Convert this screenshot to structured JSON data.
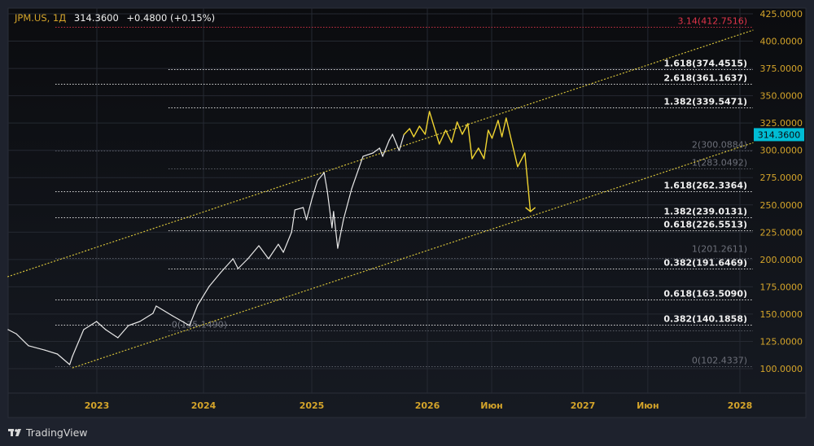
{
  "header": {
    "symbol": "JPM.US, 1Д",
    "price": "314.3600",
    "change": "+0.4800 (+0.15%)"
  },
  "branding": {
    "logo_text": "TradingView"
  },
  "colors": {
    "background": "#1e222d",
    "plot_top": "#0b0c0f",
    "plot_bottom": "#161a22",
    "grid": "#252932",
    "axis_text": "#d4a42a",
    "price_line": "#e8e8e8",
    "forecast_line": "#f0d431",
    "channel": "#d6c23a",
    "fib_white": "#f0f0f0",
    "fib_grey": "#6d707a",
    "fib_red": "#e0344a",
    "last_price_bg": "#00bcd4"
  },
  "chart_data": {
    "type": "line",
    "title": "",
    "xlabel": "",
    "ylabel": "",
    "ylim": [
      87,
      435
    ],
    "grid": true,
    "y_ticks": [
      "425.0000",
      "400.0000",
      "375.0000",
      "350.0000",
      "325.0000",
      "300.0000",
      "275.0000",
      "250.0000",
      "225.0000",
      "200.0000",
      "175.0000",
      "150.0000",
      "125.0000",
      "100.0000"
    ],
    "x_ticks": [
      {
        "date": "2023-01-01",
        "label": "2023"
      },
      {
        "date": "2024-01-01",
        "label": "2024"
      },
      {
        "date": "2025-01-01",
        "label": "2025"
      },
      {
        "date": "2026-01-01",
        "label": "2026"
      },
      {
        "date": "2026-06-01",
        "label": "Июн"
      },
      {
        "date": "2027-01-01",
        "label": "2027"
      },
      {
        "date": "2027-06-01",
        "label": "Июн"
      },
      {
        "date": "2028-01-01",
        "label": "2028"
      }
    ],
    "last_price": {
      "value": 314.36,
      "label": "314.3600"
    },
    "series": [
      {
        "role": "price",
        "points": [
          [
            "2022-03-03",
            135.8
          ],
          [
            "2022-03-31",
            132
          ],
          [
            "2022-05-12",
            121
          ],
          [
            "2022-07-07",
            117
          ],
          [
            "2022-08-19",
            113.4
          ],
          [
            "2022-09-30",
            103.7
          ],
          [
            "2022-10-09",
            111.2
          ],
          [
            "2022-11-17",
            135.8
          ],
          [
            "2022-12-31",
            143.2
          ],
          [
            "2023-01-31",
            135.8
          ],
          [
            "2023-03-14",
            128.3
          ],
          [
            "2023-04-19",
            139.5
          ],
          [
            "2023-05-28",
            143.2
          ],
          [
            "2023-07-12",
            150.7
          ],
          [
            "2023-07-23",
            157.4
          ],
          [
            "2023-09-17",
            148.4
          ],
          [
            "2023-11-14",
            139.5
          ],
          [
            "2023-12-12",
            158.1
          ],
          [
            "2024-01-20",
            175.3
          ],
          [
            "2024-02-28",
            188
          ],
          [
            "2024-04-10",
            200.6
          ],
          [
            "2024-04-27",
            191.7
          ],
          [
            "2024-05-30",
            200.6
          ],
          [
            "2024-07-06",
            212.6
          ],
          [
            "2024-08-08",
            200.6
          ],
          [
            "2024-09-10",
            214
          ],
          [
            "2024-09-27",
            206.6
          ],
          [
            "2024-10-25",
            225.2
          ],
          [
            "2024-11-05",
            245.4
          ],
          [
            "2024-12-03",
            247.6
          ],
          [
            "2024-12-14",
            236.4
          ],
          [
            "2025-01-01",
            255
          ],
          [
            "2025-01-19",
            272.2
          ],
          [
            "2025-02-09",
            279.6
          ],
          [
            "2025-02-19",
            262.5
          ],
          [
            "2025-03-06",
            229
          ],
          [
            "2025-03-11",
            243.9
          ],
          [
            "2025-03-24",
            210.3
          ],
          [
            "2025-04-11",
            236.4
          ],
          [
            "2025-05-07",
            264.7
          ],
          [
            "2025-06-12",
            294.5
          ],
          [
            "2025-07-13",
            297.5
          ],
          [
            "2025-08-03",
            302
          ],
          [
            "2025-08-13",
            294.5
          ],
          [
            "2025-09-03",
            309.5
          ],
          [
            "2025-09-13",
            314.7
          ],
          [
            "2025-10-04",
            299.8
          ],
          [
            "2025-10-19",
            314.36
          ]
        ]
      },
      {
        "role": "forecast",
        "points": [
          [
            "2025-10-19",
            314.36
          ],
          [
            "2025-11-06",
            319.9
          ],
          [
            "2025-11-19",
            312.4
          ],
          [
            "2025-12-07",
            322.1
          ],
          [
            "2025-12-25",
            314.7
          ],
          [
            "2026-01-06",
            335.6
          ],
          [
            "2026-01-29",
            305.7
          ],
          [
            "2026-02-13",
            318.4
          ],
          [
            "2026-02-27",
            307.2
          ],
          [
            "2026-03-12",
            325.9
          ],
          [
            "2026-03-24",
            314.7
          ],
          [
            "2026-04-06",
            324.4
          ],
          [
            "2026-04-16",
            292.3
          ],
          [
            "2026-05-01",
            302
          ],
          [
            "2026-05-14",
            292.3
          ],
          [
            "2026-05-24",
            318.4
          ],
          [
            "2026-06-02",
            311
          ],
          [
            "2026-06-16",
            327.4
          ],
          [
            "2026-06-25",
            312.4
          ],
          [
            "2026-07-05",
            329.6
          ],
          [
            "2026-08-01",
            284.9
          ],
          [
            "2026-08-18",
            297.5
          ],
          [
            "2026-08-31",
            243.9
          ]
        ]
      }
    ],
    "channel": [
      {
        "role": "upper",
        "from": [
          "2022-03-01",
          184.2
        ],
        "to": [
          "2028-02-01",
          410.1
        ]
      },
      {
        "role": "lower",
        "from": [
          "2022-10-09",
          100.7
        ],
        "to": [
          "2028-02-01",
          307
        ]
      }
    ],
    "fib_levels": [
      {
        "label": "3.14(412.7516)",
        "value": 412.7516,
        "start": "2022-08-12",
        "style": "red"
      },
      {
        "label": "1.618(374.4515)",
        "value": 374.4515,
        "start": "2023-09-03",
        "style": "white"
      },
      {
        "label": "2.618(361.1637)",
        "value": 361.1637,
        "start": "2022-08-12",
        "style": "white"
      },
      {
        "label": "1.382(339.5471)",
        "value": 339.5471,
        "start": "2023-09-03",
        "style": "white"
      },
      {
        "label": "2(300.0884)",
        "value": 300.0884,
        "start": "2022-08-12",
        "style": "grey"
      },
      {
        "label": "1(283.0492)",
        "value": 283.0492,
        "start": "2023-09-03",
        "style": "grey"
      },
      {
        "label": "1.618(262.3364)",
        "value": 262.3364,
        "start": "2022-08-12",
        "style": "white"
      },
      {
        "label": "1.382(239.0131)",
        "value": 239.0131,
        "start": "2022-08-12",
        "style": "white"
      },
      {
        "label": "0.618(226.5513)",
        "value": 226.5513,
        "start": "2023-09-03",
        "style": "white"
      },
      {
        "label": "1(201.2611)",
        "value": 201.2611,
        "start": "2022-08-12",
        "style": "grey"
      },
      {
        "label": "0.382(191.6469)",
        "value": 191.6469,
        "start": "2023-09-03",
        "style": "white"
      },
      {
        "label": "0.618(163.5090)",
        "value": 163.509,
        "start": "2022-08-12",
        "style": "white"
      },
      {
        "label": "0.382(140.1858)",
        "value": 140.1858,
        "start": "2022-08-12",
        "style": "white"
      },
      {
        "label": "0(135.1490)",
        "value": 135.149,
        "start": "2023-09-03",
        "style": "grey"
      },
      {
        "label": "0(102.4337)",
        "value": 102.4337,
        "start": "2022-08-12",
        "style": "grey"
      }
    ]
  }
}
